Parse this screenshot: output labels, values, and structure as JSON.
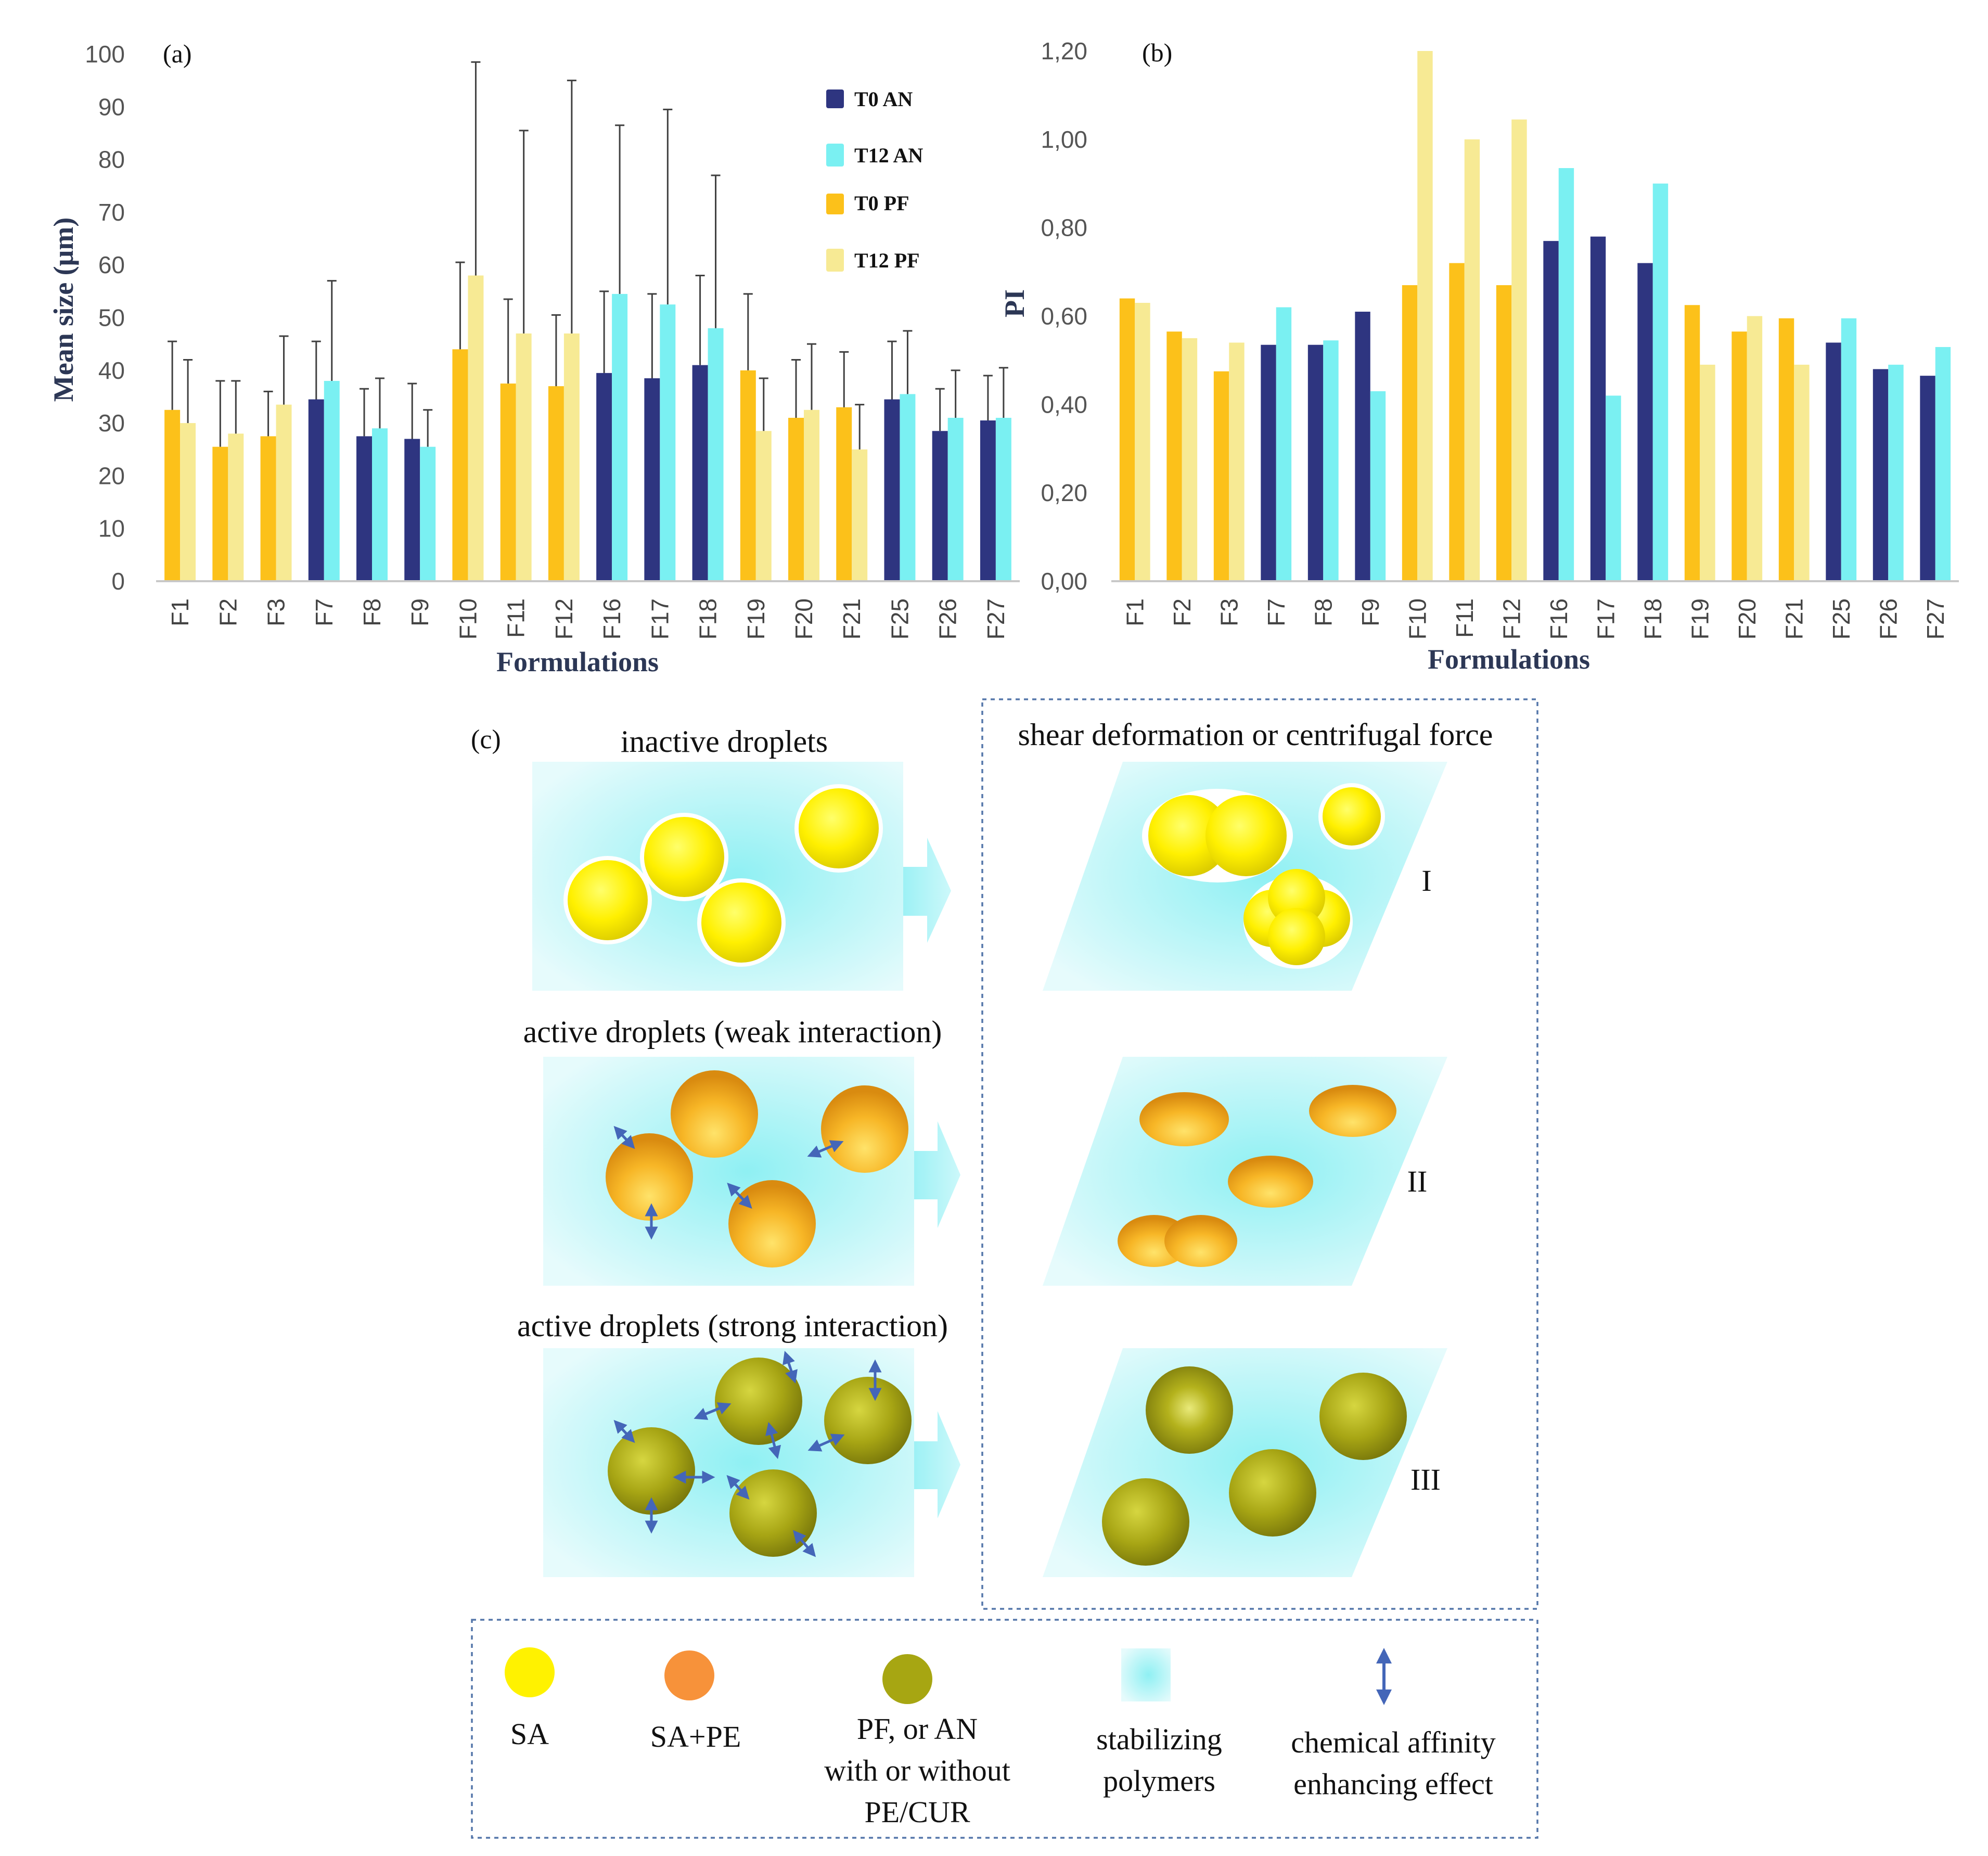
{
  "colors": {
    "t0_an": "#2e3580",
    "t12_an": "#7af0f2",
    "t0_pf": "#fcc11a",
    "t12_pf": "#f7ea94",
    "error_bar": "#404040",
    "axis_label": "#2c3755",
    "dash_border": "#5577aa",
    "arrow": "#4466b8",
    "sa": "#fff200",
    "sa_pe": "#f7923a",
    "pf_an": "#a7a612",
    "polymer": "#8cf0f2"
  },
  "chart_data": [
    {
      "id": "a",
      "type": "bar",
      "panel_label": "(a)",
      "title": "",
      "xlabel": "Formulations",
      "ylabel": "Mean size (μm)",
      "ylim": [
        0,
        100
      ],
      "yticks": [
        0,
        10,
        20,
        30,
        40,
        50,
        60,
        70,
        80,
        90,
        100
      ],
      "ytick_labels": [
        "0",
        "10",
        "20",
        "30",
        "40",
        "50",
        "60",
        "70",
        "80",
        "90",
        "100"
      ],
      "legend_position": "top-right",
      "legend": [
        "T0 AN",
        "T12 AN",
        "T0 PF",
        "T12 PF"
      ],
      "categories": [
        "F1",
        "F2",
        "F3",
        "F7",
        "F8",
        "F9",
        "F10",
        "F11",
        "F12",
        "F16",
        "F17",
        "F18",
        "F19",
        "F20",
        "F21",
        "F25",
        "F26",
        "F27"
      ],
      "groups": [
        "PF",
        "PF",
        "PF",
        "AN",
        "AN",
        "AN",
        "PF",
        "PF",
        "PF",
        "AN",
        "AN",
        "AN",
        "PF",
        "PF",
        "PF",
        "AN",
        "AN",
        "AN"
      ],
      "series": [
        {
          "name": "T0",
          "values": [
            32.5,
            25.5,
            27.5,
            34.5,
            27.5,
            27,
            44,
            37.5,
            37,
            39.5,
            38.5,
            41,
            40,
            31,
            33,
            34.5,
            28.5,
            30.5
          ],
          "errors": [
            13,
            12.5,
            8.5,
            11,
            9,
            10.5,
            16.5,
            16,
            13.5,
            15.5,
            16,
            17,
            14.5,
            11,
            10.5,
            11,
            8,
            8.5
          ]
        },
        {
          "name": "T12",
          "values": [
            30,
            28,
            33.5,
            38,
            29,
            25.5,
            58,
            47,
            47,
            54.5,
            52.5,
            48,
            28.5,
            32.5,
            25,
            35.5,
            31,
            31
          ],
          "errors": [
            12,
            10,
            13,
            19,
            9.5,
            7,
            40.5,
            38.5,
            48,
            32,
            37,
            29,
            10,
            12.5,
            8.5,
            12,
            9,
            9.5
          ]
        }
      ]
    },
    {
      "id": "b",
      "type": "bar",
      "panel_label": "(b)",
      "title": "",
      "xlabel": "Formulations",
      "ylabel": "PI",
      "ylim": [
        0,
        1.2
      ],
      "yticks": [
        0,
        0.2,
        0.4,
        0.6,
        0.8,
        1.0,
        1.2
      ],
      "ytick_labels": [
        "0,00",
        "0,20",
        "0,40",
        "0,60",
        "0,80",
        "1,00",
        "1,20"
      ],
      "categories": [
        "F1",
        "F2",
        "F3",
        "F7",
        "F8",
        "F9",
        "F10",
        "F11",
        "F12",
        "F16",
        "F17",
        "F18",
        "F19",
        "F20",
        "F21",
        "F25",
        "F26",
        "F27"
      ],
      "groups": [
        "PF",
        "PF",
        "PF",
        "AN",
        "AN",
        "AN",
        "PF",
        "PF",
        "PF",
        "AN",
        "AN",
        "AN",
        "PF",
        "PF",
        "PF",
        "AN",
        "AN",
        "AN"
      ],
      "series": [
        {
          "name": "T0",
          "values": [
            0.64,
            0.565,
            0.475,
            0.535,
            0.535,
            0.61,
            0.67,
            0.72,
            0.67,
            0.77,
            0.78,
            0.72,
            0.625,
            0.565,
            0.595,
            0.54,
            0.48,
            0.465
          ]
        },
        {
          "name": "T12",
          "values": [
            0.63,
            0.55,
            0.54,
            0.62,
            0.545,
            0.43,
            1.2,
            1.0,
            1.045,
            0.935,
            0.42,
            0.9,
            0.49,
            0.6,
            0.49,
            0.595,
            0.49,
            0.53
          ]
        }
      ]
    }
  ],
  "diagram": {
    "panel_label": "(c)",
    "left_titles": [
      "inactive droplets",
      "active droplets (weak interaction)",
      "active droplets (strong interaction)"
    ],
    "right_title": "shear deformation or centrifugal force",
    "roman": [
      "I",
      "II",
      "III"
    ],
    "legend": {
      "sa": "SA",
      "sa_pe": "SA+PE",
      "pf_lines": [
        "PF, or AN",
        "with or without",
        "PE/CUR"
      ],
      "polymer_lines": [
        "stabilizing",
        "polymers"
      ],
      "affinity_lines": [
        "chemical affinity",
        "enhancing effect"
      ]
    }
  }
}
